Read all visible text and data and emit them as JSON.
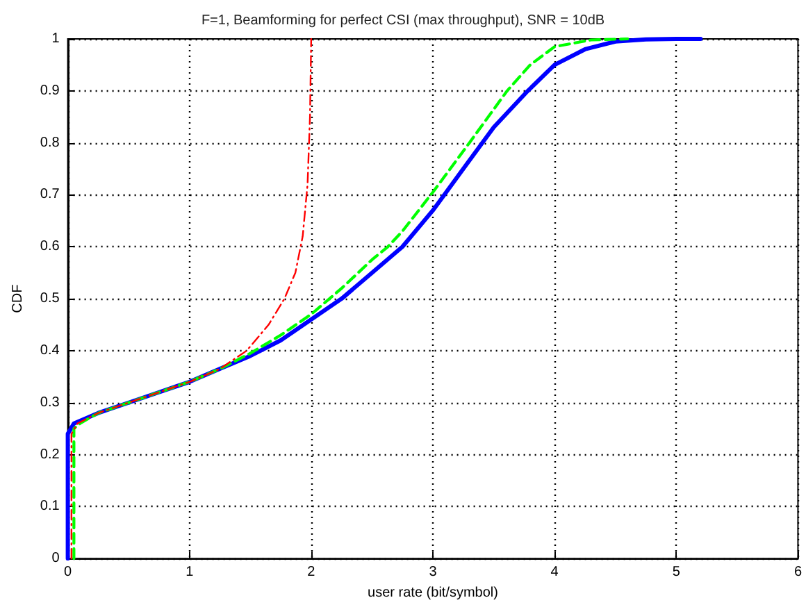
{
  "chart_data": {
    "type": "line",
    "title": "F=1, Beamforming for perfect CSI (max throughput), SNR = 10dB",
    "xlabel": "user rate (bit/symbol)",
    "ylabel": "CDF",
    "xlim": [
      0,
      6
    ],
    "xticks": [
      0,
      1,
      2,
      3,
      4,
      5,
      6
    ],
    "ylim": [
      0,
      1
    ],
    "yticks": [
      0,
      0.1,
      0.2,
      0.3,
      0.4,
      0.5,
      0.6,
      0.7,
      0.8,
      0.9,
      1
    ],
    "grid": true,
    "marker": "none",
    "series": [
      {
        "color": "#0000ff",
        "line_style": "solid",
        "x": [
          0,
          0,
          0.05,
          0.25,
          0.5,
          0.75,
          1,
          1.25,
          1.5,
          1.75,
          2,
          2.25,
          2.5,
          2.75,
          3,
          3.25,
          3.5,
          3.78,
          4,
          4.25,
          4.5,
          4.75,
          5,
          5.2
        ],
        "values": [
          0,
          0.24,
          0.26,
          0.28,
          0.3,
          0.32,
          0.34,
          0.365,
          0.39,
          0.42,
          0.46,
          0.5,
          0.55,
          0.6,
          0.67,
          0.75,
          0.83,
          0.9,
          0.95,
          0.98,
          0.995,
          0.999,
          1,
          1
        ]
      },
      {
        "color": "#00ff00",
        "line_style": "dashed",
        "x": [
          0.05,
          0.05,
          0.1,
          0.25,
          0.5,
          0.75,
          1,
          1.25,
          1.5,
          1.75,
          2,
          2.25,
          2.5,
          2.63,
          2.75,
          3,
          3.3,
          3.61,
          3.8,
          4,
          4.3,
          4.6
        ],
        "values": [
          0,
          0.25,
          0.26,
          0.28,
          0.3,
          0.32,
          0.34,
          0.365,
          0.395,
          0.43,
          0.47,
          0.52,
          0.575,
          0.6,
          0.63,
          0.705,
          0.8,
          0.9,
          0.95,
          0.985,
          0.998,
          1
        ]
      },
      {
        "color": "#ff0000",
        "line_style": "dashdot",
        "x": [
          0.03,
          0.03,
          0.08,
          0.25,
          0.5,
          0.75,
          1,
          1.25,
          1.47,
          1.65,
          1.78,
          1.87,
          1.93,
          1.97,
          1.99,
          2
        ],
        "values": [
          0,
          0.24,
          0.26,
          0.28,
          0.3,
          0.32,
          0.34,
          0.365,
          0.4,
          0.45,
          0.5,
          0.55,
          0.62,
          0.72,
          0.85,
          1
        ]
      }
    ]
  }
}
